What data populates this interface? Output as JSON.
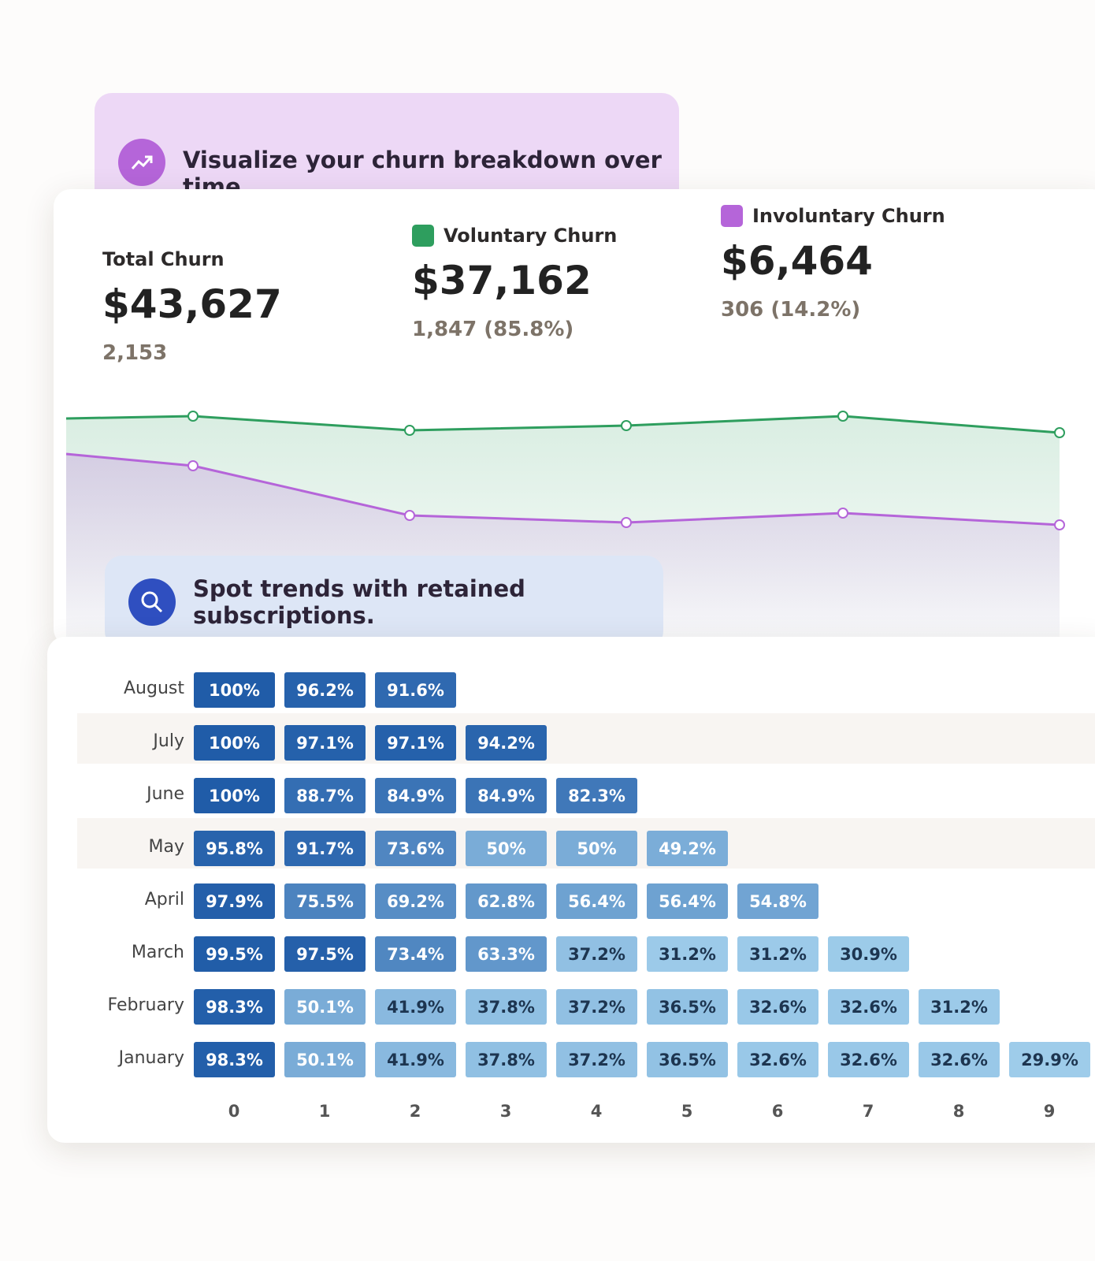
{
  "churn_banner": {
    "text": "Visualize your churn breakdown over time."
  },
  "total": {
    "label": "Total Churn",
    "amount": "$43,627",
    "count": "2,153"
  },
  "voluntary": {
    "label": "Voluntary Churn",
    "amount": "$37,162",
    "count": "1,847 (85.8%)",
    "color": "#2e9e5e"
  },
  "involuntary": {
    "label": "Involuntary Churn",
    "amount": "$6,464",
    "count": "306 (14.2%)",
    "color": "#b565d9"
  },
  "trend": {
    "type": "line",
    "ylim": [
      0,
      100
    ],
    "series": [
      {
        "color": "#2e9e5e",
        "values": [
          83,
          84,
          78,
          80,
          84,
          77
        ]
      },
      {
        "color": "#b565d9",
        "values": [
          68,
          63,
          42,
          39,
          43,
          38
        ]
      }
    ]
  },
  "retention_banner": {
    "text": "Spot trends with retained subscriptions."
  },
  "cohort_table": {
    "columns": [
      "0",
      "1",
      "2",
      "3",
      "4",
      "5",
      "6",
      "7",
      "8",
      "9"
    ],
    "rows": [
      {
        "label": "August",
        "cells": [
          "100%",
          "96.2%",
          "91.6%"
        ]
      },
      {
        "label": "July",
        "cells": [
          "100%",
          "97.1%",
          "97.1%",
          "94.2%"
        ]
      },
      {
        "label": "June",
        "cells": [
          "100%",
          "88.7%",
          "84.9%",
          "84.9%",
          "82.3%"
        ]
      },
      {
        "label": "May",
        "cells": [
          "95.8%",
          "91.7%",
          "73.6%",
          "50%",
          "50%",
          "49.2%"
        ]
      },
      {
        "label": "April",
        "cells": [
          "97.9%",
          "75.5%",
          "69.2%",
          "62.8%",
          "56.4%",
          "56.4%",
          "54.8%"
        ]
      },
      {
        "label": "March",
        "cells": [
          "99.5%",
          "97.5%",
          "73.4%",
          "63.3%",
          "37.2%",
          "31.2%",
          "31.2%",
          "30.9%"
        ]
      },
      {
        "label": "February",
        "cells": [
          "98.3%",
          "50.1%",
          "41.9%",
          "37.8%",
          "37.2%",
          "36.5%",
          "32.6%",
          "32.6%",
          "31.2%"
        ]
      },
      {
        "label": "January",
        "cells": [
          "98.3%",
          "50.1%",
          "41.9%",
          "37.8%",
          "37.2%",
          "36.5%",
          "32.6%",
          "32.6%",
          "32.6%",
          "29.9%"
        ]
      }
    ]
  }
}
